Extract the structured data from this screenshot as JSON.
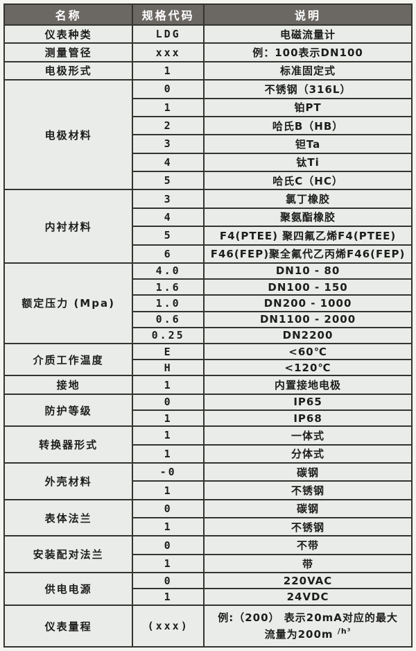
{
  "table": {
    "columns": [
      "名称",
      "规格代码",
      "说明"
    ],
    "groups": [
      {
        "name": "仪表种类",
        "rows": [
          {
            "code": "LDG",
            "desc": "电磁流量计"
          }
        ]
      },
      {
        "name": "测量管径",
        "rows": [
          {
            "code": "xxx",
            "desc": "例：100表示DN100"
          }
        ]
      },
      {
        "name": "电极形式",
        "rows": [
          {
            "code": "1",
            "desc": "标准固定式"
          }
        ]
      },
      {
        "name": "电极材料",
        "rows": [
          {
            "code": "0",
            "desc": "不锈钢（316L）"
          },
          {
            "code": "1",
            "desc": "铂PT"
          },
          {
            "code": "2",
            "desc": "哈氏B（HB）"
          },
          {
            "code": "3",
            "desc": "钽Ta"
          },
          {
            "code": "4",
            "desc": "钛Ti"
          },
          {
            "code": "5",
            "desc": "哈氏C（HC）"
          }
        ]
      },
      {
        "name": "内衬材料",
        "rows": [
          {
            "code": "3",
            "desc": "氯丁橡胶"
          },
          {
            "code": "4",
            "desc": "聚氨酯橡胶"
          },
          {
            "code": "5",
            "desc": "F4(PTEE) 聚四氟乙烯F4(PTEE)"
          },
          {
            "code": "6",
            "desc": "F46(FEP)聚全氟代乙丙烯F46(FEP)"
          }
        ]
      },
      {
        "name": "额定压力 (Mpa)",
        "rows": [
          {
            "code": "4.0",
            "desc": "DN10 - 80"
          },
          {
            "code": "1.6",
            "desc": "DN100 - 150"
          },
          {
            "code": "1.0",
            "desc": "DN200 - 1000"
          },
          {
            "code": "0.6",
            "desc": "DN1100 - 2000"
          },
          {
            "code": "0.25",
            "desc": "DN2200"
          }
        ]
      },
      {
        "name": "介质工作温度",
        "rows": [
          {
            "code": "E",
            "desc": "<60℃"
          },
          {
            "code": "H",
            "desc": "<120℃"
          }
        ]
      },
      {
        "name": "接地",
        "rows": [
          {
            "code": "1",
            "desc": "内置接地电极"
          }
        ]
      },
      {
        "name": "防护等级",
        "rows": [
          {
            "code": "0",
            "desc": "IP65"
          },
          {
            "code": "1",
            "desc": "IP68"
          }
        ]
      },
      {
        "name": "转换器形式",
        "rows": [
          {
            "code": "1",
            "desc": "一体式"
          },
          {
            "code": "1",
            "desc": "分体式"
          }
        ]
      },
      {
        "name": "外壳材料",
        "rows": [
          {
            "code": "-0",
            "desc": "碳钢"
          },
          {
            "code": "1",
            "desc": "不锈钢"
          }
        ]
      },
      {
        "name": "表体法兰",
        "rows": [
          {
            "code": "0",
            "desc": "碳钢"
          },
          {
            "code": "1",
            "desc": "不锈钢"
          }
        ]
      },
      {
        "name": "安装配对法兰",
        "rows": [
          {
            "code": "0",
            "desc": "不带"
          },
          {
            "code": "1",
            "desc": "带"
          }
        ]
      },
      {
        "name": "供电电源",
        "rows": [
          {
            "code": "0",
            "desc": "220VAC"
          },
          {
            "code": "1",
            "desc": "24VDC"
          }
        ]
      },
      {
        "name": "仪表量程",
        "tall": true,
        "rows": [
          {
            "code": "(xxx)",
            "desc": "例:（200） 表示20mA对应的最大",
            "desc2": "流量为200m",
            "desc2_sup": "/h³"
          }
        ]
      }
    ]
  },
  "colors": {
    "header_background": "#6b6864",
    "header_text": "#ffffff",
    "body_background": "#e9ece8",
    "border": "#343330",
    "text": "#1d1d1b"
  }
}
